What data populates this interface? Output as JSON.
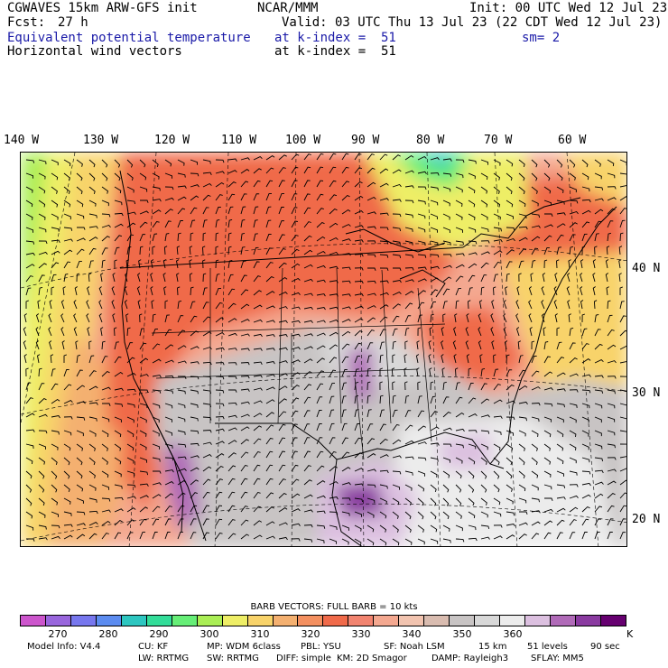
{
  "header": {
    "model": "CGWAVES 15km ARW-GFS init",
    "org": "NCAR/MMM",
    "init": "Init: 00 UTC Wed 12 Jul 23",
    "fcst_label": "Fcst:",
    "fcst_value": "27 h",
    "valid": "Valid: 03 UTC Thu 13 Jul 23 (22 CDT Wed 12 Jul 23)",
    "field1": "Equivalent potential temperature",
    "field1_level": "at k-index =  51",
    "smoothing": "sm= 2",
    "field2": "Horizontal wind vectors",
    "field2_level": "at k-index =  51"
  },
  "map": {
    "lon_labels": [
      "140 W",
      "130 W",
      "120 W",
      "110 W",
      "100 W",
      "90 W",
      "80 W",
      "70 W",
      "60 W"
    ],
    "lat_labels": [
      "40 N",
      "30 N",
      "20 N"
    ]
  },
  "legend": {
    "barb_title": "BARB VECTORS:  FULL BARB = 10 kts",
    "unit": "K",
    "tick_labels": [
      "270",
      "280",
      "290",
      "300",
      "310",
      "320",
      "330",
      "340",
      "350",
      "360"
    ],
    "colors": [
      "#cc55cc",
      "#9966dd",
      "#7777ee",
      "#5c8cf0",
      "#2dc6c0",
      "#33dd99",
      "#66ee77",
      "#aaee55",
      "#eeee66",
      "#f8d36a",
      "#f4b070",
      "#f49060",
      "#f06a4a",
      "#f28470",
      "#f4a890",
      "#f2c4b0",
      "#d9bcb0",
      "#c8c4c4",
      "#d8d8d8",
      "#ececec",
      "#dcc0e0",
      "#b06ab8",
      "#8a3aa0",
      "#660070"
    ]
  },
  "footer": {
    "line1": [
      "Model Info: V4.4",
      "CU: KF",
      "MP: WDM 6class",
      "PBL: YSU",
      "SF: Noah LSM",
      "15 km",
      "51 levels",
      "90 sec"
    ],
    "line2": [
      "LW: RRTMG",
      "SW: RRTMG",
      "DIFF: simple",
      "KM: 2D Smagor",
      "DAMP: Rayleigh3",
      "SFLAY: MM5"
    ]
  }
}
